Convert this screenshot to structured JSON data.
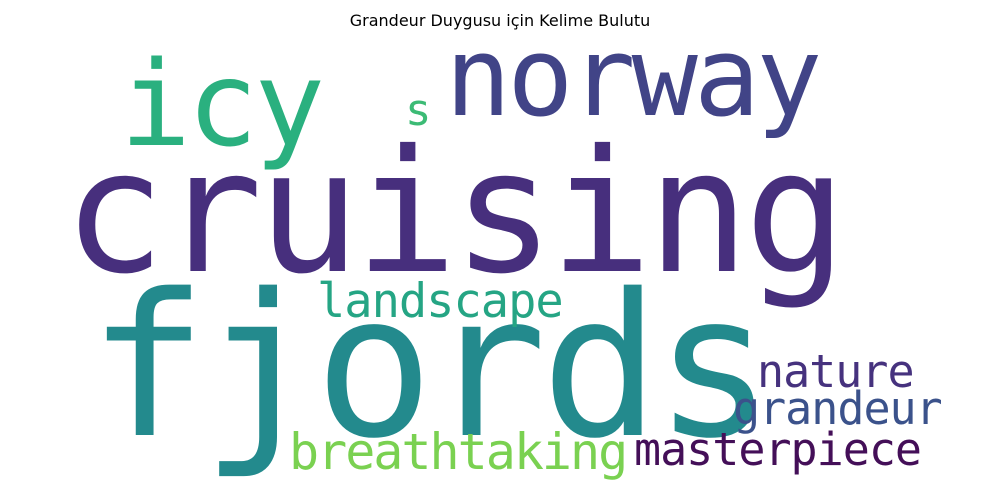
{
  "title": "Grandeur Duygusu için Kelime Bulutu",
  "words": {
    "cruising": {
      "text": "cruising",
      "color": "#472f7d"
    },
    "fjords": {
      "text": "fjords",
      "color": "#238a8d"
    },
    "norway": {
      "text": "norway",
      "color": "#414487"
    },
    "icy": {
      "text": "icy",
      "color": "#2ab07f"
    },
    "s": {
      "text": "s",
      "color": "#3cbb75"
    },
    "landscape": {
      "text": "landscape",
      "color": "#25a584"
    },
    "nature": {
      "text": "nature",
      "color": "#46327e"
    },
    "grandeur": {
      "text": "grandeur",
      "color": "#3b528b"
    },
    "breathtaking": {
      "text": "breathtaking",
      "color": "#7ad151"
    },
    "masterpiece": {
      "text": "masterpiece",
      "color": "#440f58"
    }
  }
}
